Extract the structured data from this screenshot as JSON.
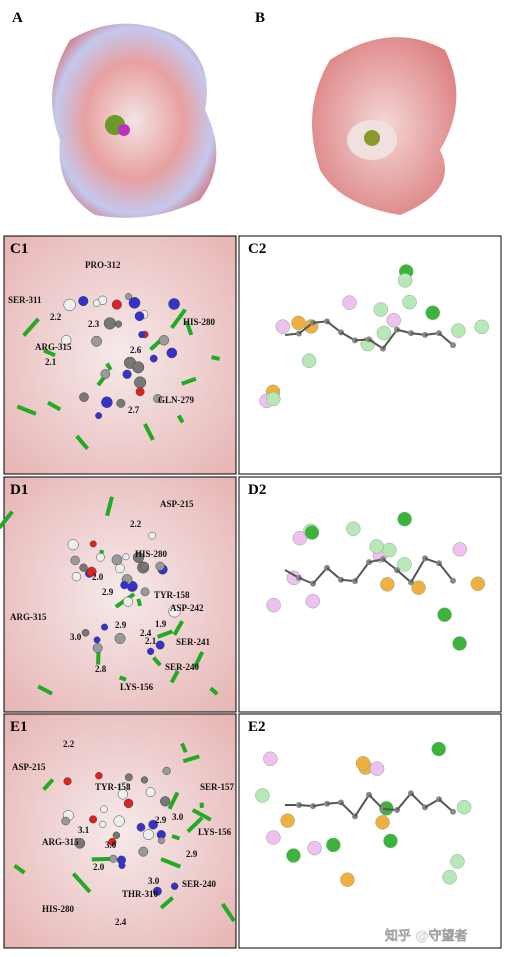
{
  "panels": {
    "a": {
      "label": "A"
    },
    "b": {
      "label": "B"
    },
    "c1": {
      "label": "C1",
      "residues": [
        "PRO-312",
        "SER-311",
        "HIS-280",
        "ARG-315",
        "GLN-279"
      ],
      "distances": [
        "2.2",
        "2.3",
        "2.1",
        "2.6",
        "2.7"
      ]
    },
    "c2": {
      "label": "C2"
    },
    "d1": {
      "label": "D1",
      "residues": [
        "ASP-215",
        "HIS-280",
        "TYR-158",
        "ASP-242",
        "ARG-315",
        "SER-241",
        "SER-240",
        "LYS-156"
      ],
      "distances": [
        "2.2",
        "2.0",
        "2.9",
        "1.9",
        "3.0",
        "2.1",
        "2.4",
        "2.8",
        "2.9"
      ]
    },
    "d2": {
      "label": "D2"
    },
    "e1": {
      "label": "E1",
      "residues": [
        "ASP-215",
        "TYR-158",
        "SER-157",
        "ARG-315",
        "LYS-156",
        "HIS-280",
        "THR-310",
        "SER-240"
      ],
      "distances": [
        "2.2",
        "3.1",
        "3.0",
        "2.9",
        "3.0",
        "2.0",
        "3.0",
        "2.9",
        "2.4"
      ]
    },
    "e2": {
      "label": "E2"
    }
  },
  "watermark": "知乎 @守望者"
}
